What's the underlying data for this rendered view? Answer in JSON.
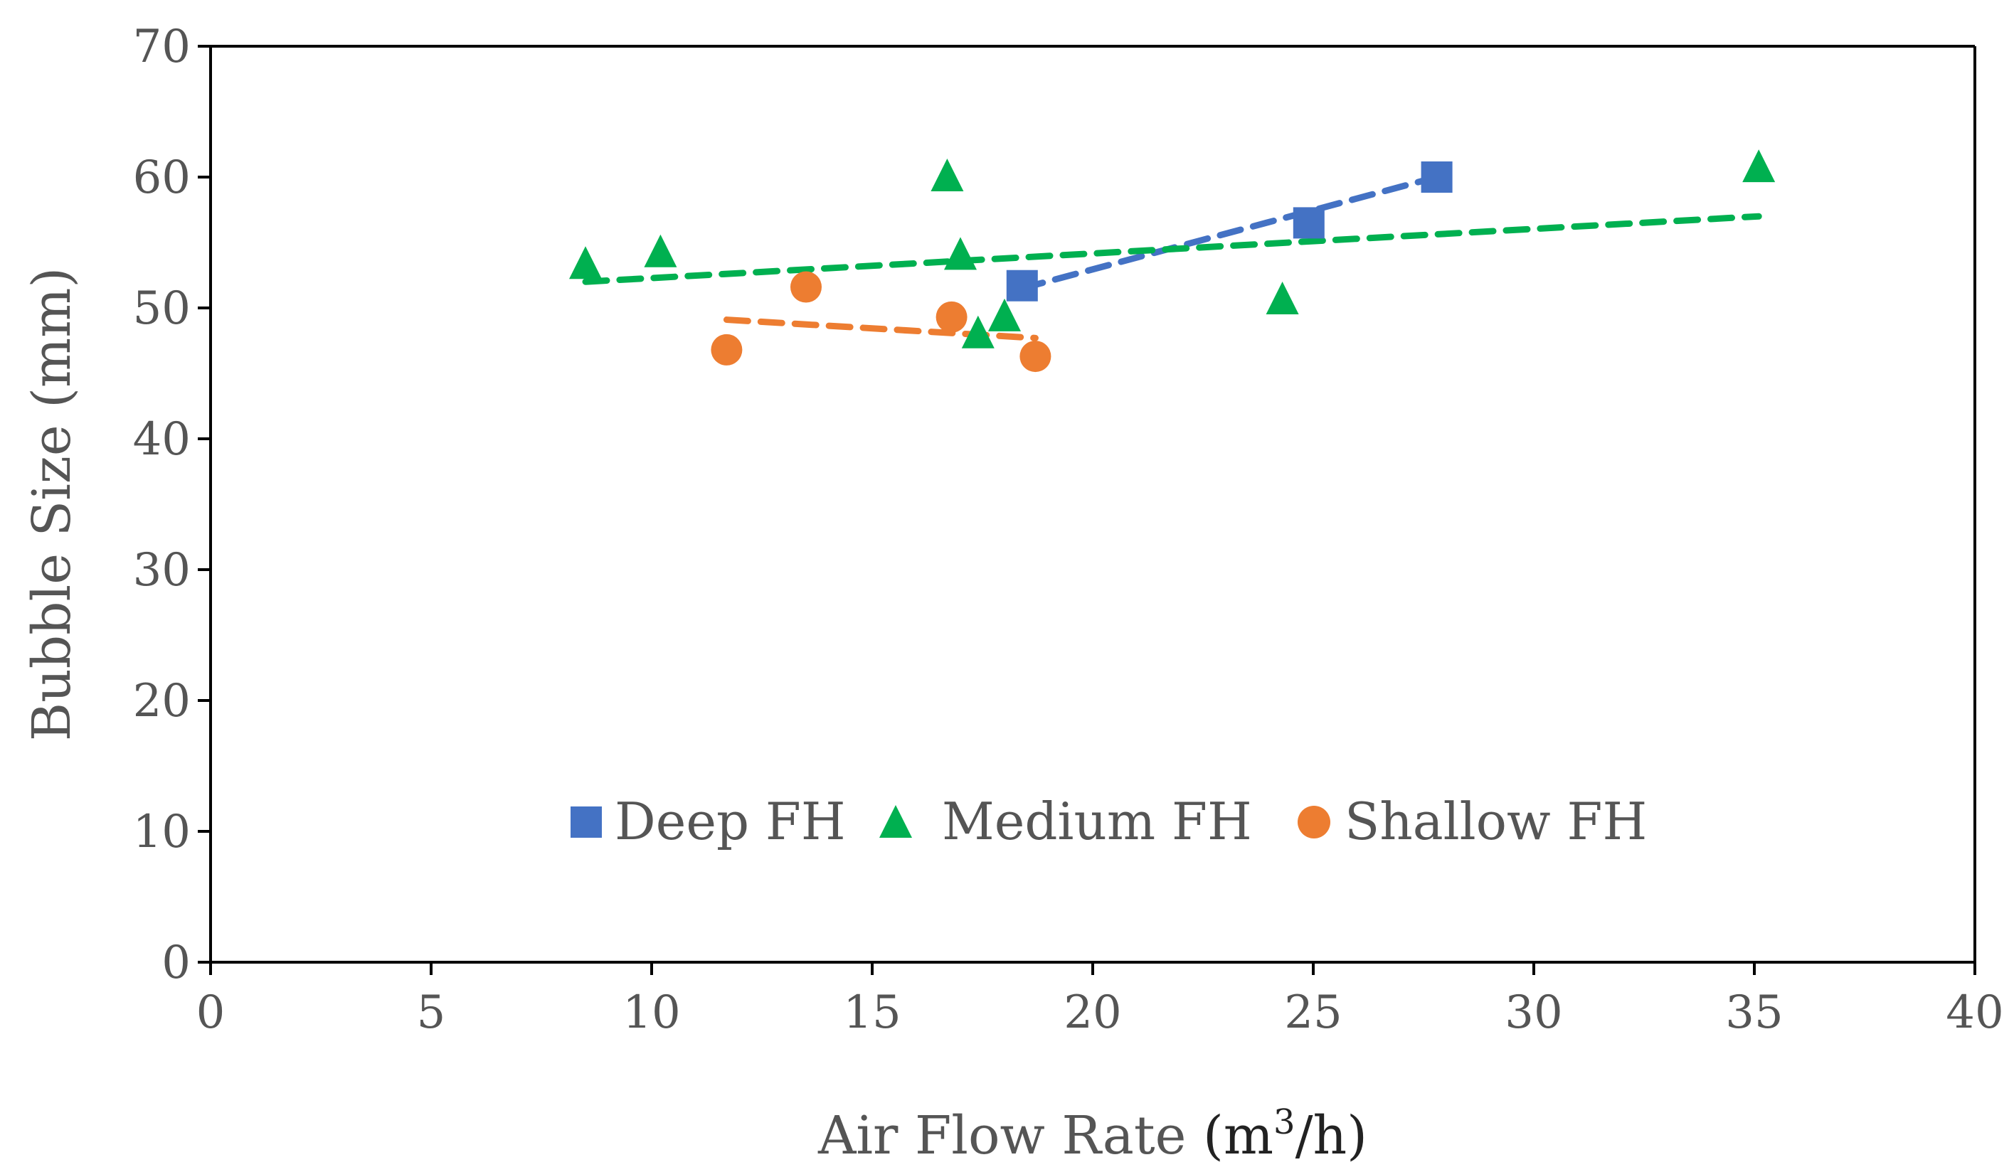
{
  "chart_data": {
    "type": "scatter",
    "title": "",
    "xlabel": "Air Flow Rate (m³/h)",
    "xlabel_parts": {
      "main": "Air Flow Rate ",
      "unit_open": "(m",
      "unit_sup": "3",
      "unit_close": "/h)"
    },
    "ylabel": "Bubble Size (mm)",
    "xlim": [
      0,
      40
    ],
    "ylim": [
      0,
      70
    ],
    "xticks": [
      0,
      5,
      10,
      15,
      20,
      25,
      30,
      35,
      40
    ],
    "yticks": [
      0,
      10,
      20,
      30,
      40,
      50,
      60,
      70
    ],
    "grid": false,
    "legend_position": "bottom-center-inside",
    "series": [
      {
        "name": "Deep FH",
        "color": "#4472C4",
        "marker": "square",
        "points": [
          [
            18.4,
            51.7
          ],
          [
            24.9,
            56.5
          ],
          [
            27.8,
            60.0
          ]
        ],
        "trendline": [
          [
            18.4,
            51.5
          ],
          [
            27.8,
            60.0
          ]
        ]
      },
      {
        "name": "Medium FH",
        "color": "#00B050",
        "marker": "triangle",
        "points": [
          [
            8.5,
            53.3
          ],
          [
            10.2,
            54.2
          ],
          [
            16.7,
            60.0
          ],
          [
            17.0,
            54.0
          ],
          [
            17.4,
            48.0
          ],
          [
            18.0,
            49.3
          ],
          [
            24.3,
            50.6
          ],
          [
            35.1,
            60.7
          ]
        ],
        "trendline": [
          [
            8.5,
            52.0
          ],
          [
            35.1,
            57.0
          ]
        ]
      },
      {
        "name": "Shallow FH",
        "color": "#ED7D31",
        "marker": "circle",
        "points": [
          [
            11.7,
            46.8
          ],
          [
            13.5,
            51.6
          ],
          [
            16.8,
            49.3
          ],
          [
            18.7,
            46.3
          ]
        ],
        "trendline": [
          [
            11.7,
            49.1
          ],
          [
            18.7,
            47.7
          ]
        ]
      }
    ]
  }
}
